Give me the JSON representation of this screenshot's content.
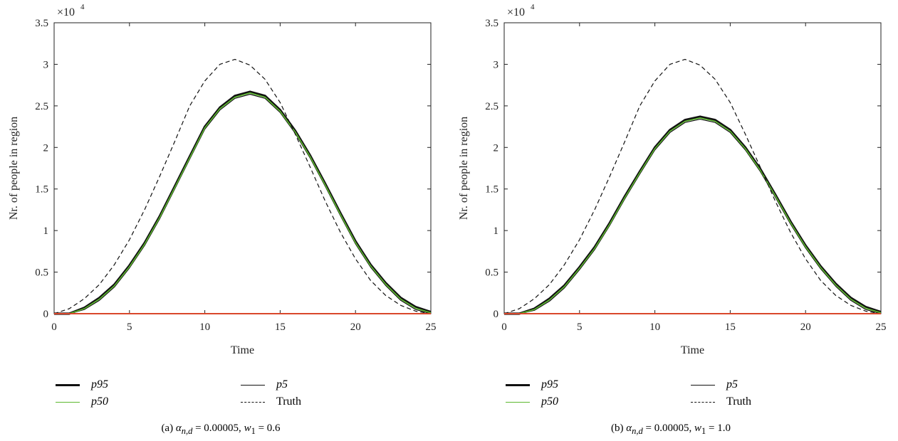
{
  "colors": {
    "p95": "#111111",
    "p5": "#111111",
    "p50": "#5cb82e",
    "truth": "#111111",
    "zero_line": "#d9472b"
  },
  "chart_data": [
    {
      "type": "line",
      "xlabel": "Time",
      "ylabel": "Nr. of people in region",
      "y_multiplier": "×10",
      "y_multiplier_exp": "4",
      "xlim": [
        0,
        25
      ],
      "ylim": [
        0,
        35000
      ],
      "x_ticks": [
        0,
        5,
        10,
        15,
        20,
        25
      ],
      "y_ticks": [
        0,
        5000,
        10000,
        15000,
        20000,
        25000,
        30000,
        35000
      ],
      "x_tick_labels": [
        "0",
        "5",
        "10",
        "15",
        "20",
        "25"
      ],
      "y_tick_labels": [
        "0",
        "0.5",
        "1",
        "1.5",
        "2",
        "2.5",
        "3",
        "3.5"
      ],
      "x": [
        0,
        1,
        2,
        3,
        4,
        5,
        6,
        7,
        8,
        9,
        10,
        11,
        12,
        13,
        14,
        15,
        16,
        17,
        18,
        19,
        20,
        21,
        22,
        23,
        24,
        25
      ],
      "series": [
        {
          "name": "p95",
          "style": "thick",
          "values": [
            0,
            0,
            700,
            1900,
            3500,
            5800,
            8500,
            11700,
            15300,
            18900,
            22500,
            24800,
            26200,
            26700,
            26200,
            24500,
            22000,
            19000,
            15600,
            12100,
            8700,
            5900,
            3700,
            1900,
            800,
            200
          ]
        },
        {
          "name": "p5",
          "style": "thin",
          "values": [
            0,
            0,
            500,
            1600,
            3200,
            5500,
            8200,
            11400,
            15000,
            18600,
            22200,
            24500,
            25900,
            26400,
            25900,
            24200,
            21700,
            18700,
            15300,
            11800,
            8400,
            5600,
            3400,
            1600,
            500,
            0
          ]
        },
        {
          "name": "p50",
          "style": "green",
          "values": [
            0,
            0,
            600,
            1750,
            3350,
            5650,
            8350,
            11550,
            15150,
            18750,
            22350,
            24650,
            26050,
            26550,
            26050,
            24350,
            21850,
            18850,
            15450,
            11950,
            8550,
            5750,
            3550,
            1750,
            650,
            100
          ]
        },
        {
          "name": "Truth",
          "style": "dashed",
          "values": [
            0,
            600,
            1800,
            3500,
            5900,
            8900,
            12500,
            16500,
            20700,
            25000,
            28000,
            30000,
            30600,
            29900,
            28200,
            25400,
            21600,
            17600,
            13500,
            9800,
            6600,
            4000,
            2200,
            1000,
            300,
            0
          ]
        },
        {
          "style": "zero",
          "values": [
            0,
            0,
            0,
            0,
            0,
            0,
            0,
            0,
            0,
            0,
            0,
            0,
            0,
            0,
            0,
            0,
            0,
            0,
            0,
            0,
            0,
            0,
            0,
            0,
            0,
            0
          ]
        }
      ],
      "legend": {
        "p95": "p95",
        "p50": "p50",
        "p5": "p5",
        "truth": "Truth"
      },
      "caption": {
        "prefix": "(a)",
        "symbol": "α",
        "subscript": "n,d",
        "rest_1": " = 0.00005, ",
        "w_symbol": "w",
        "w_sub": "1",
        "rest_2": " = 0.6"
      }
    },
    {
      "type": "line",
      "xlabel": "Time",
      "ylabel": "Nr. of people in region",
      "y_multiplier": "×10",
      "y_multiplier_exp": "4",
      "xlim": [
        0,
        25
      ],
      "ylim": [
        0,
        35000
      ],
      "x_ticks": [
        0,
        5,
        10,
        15,
        20,
        25
      ],
      "y_ticks": [
        0,
        5000,
        10000,
        15000,
        20000,
        25000,
        30000,
        35000
      ],
      "x_tick_labels": [
        "0",
        "5",
        "10",
        "15",
        "20",
        "25"
      ],
      "y_tick_labels": [
        "0",
        "0.5",
        "1",
        "1.5",
        "2",
        "2.5",
        "3",
        "3.5"
      ],
      "x": [
        0,
        1,
        2,
        3,
        4,
        5,
        6,
        7,
        8,
        9,
        10,
        11,
        12,
        13,
        14,
        15,
        16,
        17,
        18,
        19,
        20,
        21,
        22,
        23,
        24,
        25
      ],
      "series": [
        {
          "name": "p95",
          "style": "thick",
          "values": [
            0,
            0,
            600,
            1800,
            3400,
            5600,
            8000,
            10900,
            14100,
            17100,
            20000,
            22100,
            23300,
            23700,
            23300,
            22100,
            20000,
            17400,
            14300,
            11100,
            8200,
            5700,
            3600,
            1900,
            800,
            200
          ]
        },
        {
          "name": "p5",
          "style": "thin",
          "values": [
            0,
            0,
            400,
            1500,
            3100,
            5300,
            7700,
            10600,
            13800,
            16800,
            19700,
            21800,
            23000,
            23400,
            23000,
            21800,
            19700,
            17100,
            14000,
            10800,
            7900,
            5400,
            3300,
            1600,
            500,
            0
          ]
        },
        {
          "name": "p50",
          "style": "green",
          "values": [
            0,
            0,
            500,
            1650,
            3250,
            5450,
            7850,
            10750,
            13950,
            16950,
            19850,
            21950,
            23150,
            23550,
            23150,
            21950,
            19850,
            17250,
            14150,
            10950,
            8050,
            5550,
            3450,
            1750,
            650,
            100
          ]
        },
        {
          "name": "Truth",
          "style": "dashed",
          "values": [
            0,
            600,
            1800,
            3500,
            5900,
            8900,
            12500,
            16500,
            20700,
            25000,
            28000,
            30000,
            30600,
            29900,
            28200,
            25400,
            21600,
            17600,
            13500,
            9800,
            6600,
            4000,
            2200,
            1000,
            300,
            0
          ]
        },
        {
          "style": "zero",
          "values": [
            0,
            0,
            0,
            0,
            0,
            0,
            0,
            0,
            0,
            0,
            0,
            0,
            0,
            0,
            0,
            0,
            0,
            0,
            0,
            0,
            0,
            0,
            0,
            0,
            0,
            0
          ]
        }
      ],
      "legend": {
        "p95": "p95",
        "p50": "p50",
        "p5": "p5",
        "truth": "Truth"
      },
      "caption": {
        "prefix": "(b)",
        "symbol": "α",
        "subscript": "n,d",
        "rest_1": " = 0.00005, ",
        "w_symbol": "w",
        "w_sub": "1",
        "rest_2": " = 1.0"
      }
    }
  ]
}
